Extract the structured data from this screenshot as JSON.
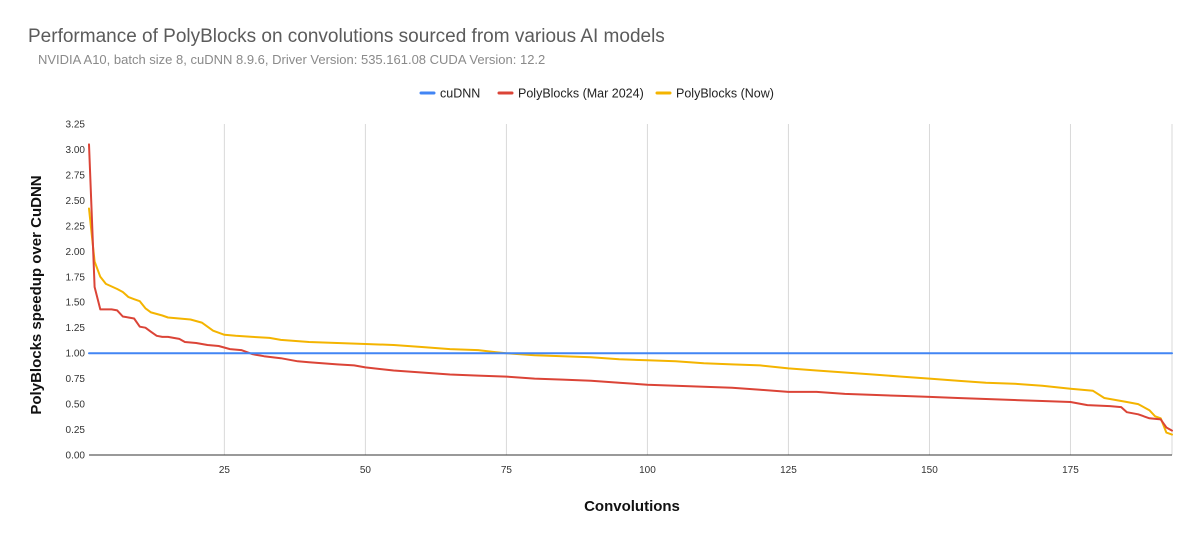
{
  "title": "Performance of PolyBlocks on convolutions sourced from various AI models",
  "subtitle": "NVIDIA A10, batch size 8, cuDNN 8.9.6, Driver Version: 535.161.08   CUDA Version: 12.2",
  "chart_data": {
    "type": "line",
    "title": "Performance of PolyBlocks on convolutions sourced from various AI models",
    "subtitle": "NVIDIA A10, batch size 8, cuDNN 8.9.6, Driver Version: 535.161.08   CUDA Version: 12.2",
    "xlabel": "Convolutions",
    "ylabel": "PolyBlocks speedup over CuDNN",
    "xlim": [
      1,
      193
    ],
    "ylim": [
      0,
      3.25
    ],
    "xticks": [
      25,
      50,
      75,
      100,
      125,
      150,
      175
    ],
    "yticks": [
      0,
      0.25,
      0.5,
      0.75,
      1.0,
      1.25,
      1.5,
      1.75,
      2.0,
      2.25,
      2.5,
      2.75,
      3.0,
      3.25
    ],
    "grid": "vertical",
    "legend_position": "top",
    "series": [
      {
        "name": "cuDNN",
        "color": "#4285f4",
        "points": [
          [
            1,
            1.0
          ],
          [
            193,
            1.0
          ]
        ]
      },
      {
        "name": "PolyBlocks (Mar 2024)",
        "color": "#db4437",
        "points": [
          [
            1,
            3.05
          ],
          [
            2,
            1.65
          ],
          [
            3,
            1.43
          ],
          [
            4,
            1.43
          ],
          [
            5,
            1.43
          ],
          [
            6,
            1.42
          ],
          [
            7,
            1.36
          ],
          [
            8,
            1.35
          ],
          [
            9,
            1.34
          ],
          [
            10,
            1.26
          ],
          [
            11,
            1.25
          ],
          [
            12,
            1.21
          ],
          [
            13,
            1.17
          ],
          [
            14,
            1.16
          ],
          [
            15,
            1.16
          ],
          [
            16,
            1.15
          ],
          [
            17,
            1.14
          ],
          [
            18,
            1.11
          ],
          [
            20,
            1.1
          ],
          [
            22,
            1.08
          ],
          [
            24,
            1.07
          ],
          [
            26,
            1.04
          ],
          [
            28,
            1.03
          ],
          [
            30,
            0.99
          ],
          [
            32,
            0.97
          ],
          [
            35,
            0.95
          ],
          [
            38,
            0.92
          ],
          [
            40,
            0.91
          ],
          [
            45,
            0.89
          ],
          [
            48,
            0.88
          ],
          [
            50,
            0.86
          ],
          [
            55,
            0.83
          ],
          [
            60,
            0.81
          ],
          [
            65,
            0.79
          ],
          [
            70,
            0.78
          ],
          [
            75,
            0.77
          ],
          [
            80,
            0.75
          ],
          [
            85,
            0.74
          ],
          [
            90,
            0.73
          ],
          [
            95,
            0.71
          ],
          [
            100,
            0.69
          ],
          [
            105,
            0.68
          ],
          [
            110,
            0.67
          ],
          [
            115,
            0.66
          ],
          [
            120,
            0.64
          ],
          [
            125,
            0.62
          ],
          [
            130,
            0.62
          ],
          [
            135,
            0.6
          ],
          [
            140,
            0.59
          ],
          [
            145,
            0.58
          ],
          [
            150,
            0.57
          ],
          [
            155,
            0.56
          ],
          [
            160,
            0.55
          ],
          [
            165,
            0.54
          ],
          [
            170,
            0.53
          ],
          [
            175,
            0.52
          ],
          [
            178,
            0.49
          ],
          [
            182,
            0.48
          ],
          [
            184,
            0.47
          ],
          [
            185,
            0.42
          ],
          [
            187,
            0.4
          ],
          [
            189,
            0.36
          ],
          [
            191,
            0.35
          ],
          [
            192,
            0.27
          ],
          [
            193,
            0.24
          ]
        ]
      },
      {
        "name": "PolyBlocks (Now)",
        "color": "#f4b400",
        "points": [
          [
            1,
            2.42
          ],
          [
            2,
            1.9
          ],
          [
            3,
            1.75
          ],
          [
            4,
            1.68
          ],
          [
            6,
            1.63
          ],
          [
            7,
            1.6
          ],
          [
            8,
            1.55
          ],
          [
            9,
            1.53
          ],
          [
            10,
            1.51
          ],
          [
            11,
            1.44
          ],
          [
            12,
            1.4
          ],
          [
            14,
            1.37
          ],
          [
            15,
            1.35
          ],
          [
            17,
            1.34
          ],
          [
            19,
            1.33
          ],
          [
            21,
            1.3
          ],
          [
            23,
            1.22
          ],
          [
            25,
            1.18
          ],
          [
            27,
            1.17
          ],
          [
            30,
            1.16
          ],
          [
            33,
            1.15
          ],
          [
            35,
            1.13
          ],
          [
            40,
            1.11
          ],
          [
            45,
            1.1
          ],
          [
            50,
            1.09
          ],
          [
            55,
            1.08
          ],
          [
            60,
            1.06
          ],
          [
            65,
            1.04
          ],
          [
            70,
            1.03
          ],
          [
            73,
            1.01
          ],
          [
            75,
            1.0
          ],
          [
            80,
            0.98
          ],
          [
            85,
            0.97
          ],
          [
            90,
            0.96
          ],
          [
            95,
            0.94
          ],
          [
            100,
            0.93
          ],
          [
            105,
            0.92
          ],
          [
            110,
            0.9
          ],
          [
            115,
            0.89
          ],
          [
            120,
            0.88
          ],
          [
            125,
            0.85
          ],
          [
            130,
            0.83
          ],
          [
            135,
            0.81
          ],
          [
            140,
            0.79
          ],
          [
            145,
            0.77
          ],
          [
            150,
            0.75
          ],
          [
            155,
            0.73
          ],
          [
            160,
            0.71
          ],
          [
            165,
            0.7
          ],
          [
            170,
            0.68
          ],
          [
            175,
            0.65
          ],
          [
            179,
            0.63
          ],
          [
            181,
            0.56
          ],
          [
            183,
            0.54
          ],
          [
            185,
            0.52
          ],
          [
            187,
            0.5
          ],
          [
            189,
            0.44
          ],
          [
            190,
            0.38
          ],
          [
            191,
            0.36
          ],
          [
            192,
            0.22
          ],
          [
            193,
            0.2
          ]
        ]
      }
    ]
  }
}
